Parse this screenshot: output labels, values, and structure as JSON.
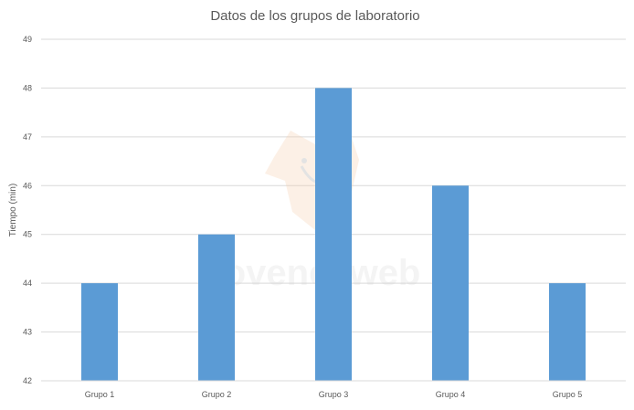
{
  "watermark": {
    "text": "jovenesweb",
    "icon": "fox-mascot-icon"
  },
  "colors": {
    "bar": "#5b9bd5",
    "grid": "#d9d9d9",
    "text": "#595959"
  },
  "chart_data": {
    "type": "bar",
    "title": "Datos de los grupos de laboratorio",
    "xlabel": "",
    "ylabel": "Tiempo (min)",
    "categories": [
      "Grupo 1",
      "Grupo 2",
      "Grupo 3",
      "Grupo 4",
      "Grupo 5"
    ],
    "values": [
      44,
      45,
      48,
      46,
      44
    ],
    "ylim": [
      42,
      49
    ],
    "yticks": [
      42,
      43,
      44,
      45,
      46,
      47,
      48,
      49
    ],
    "grid": true,
    "legend": "none"
  }
}
